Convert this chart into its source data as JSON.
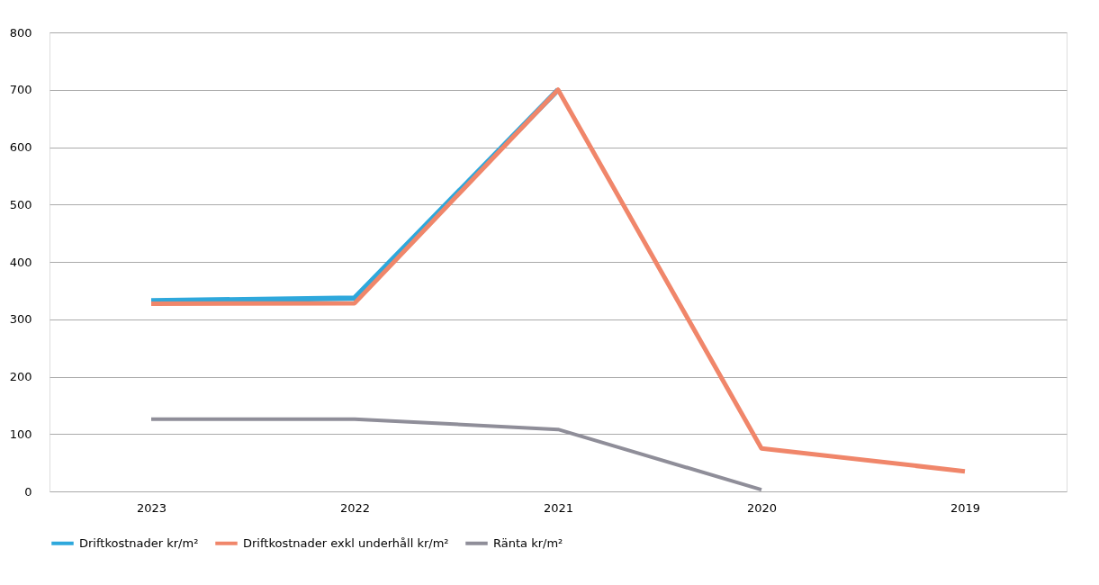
{
  "chart_data": {
    "type": "line",
    "categories": [
      "2023",
      "2022",
      "2021",
      "2020",
      "2019"
    ],
    "series": [
      {
        "name": "Driftkostnader kr/m²",
        "color": "#2ea8dc",
        "values": [
          332,
          337,
          700,
          null,
          null
        ]
      },
      {
        "name": "Driftkostnader exkl underhåll kr/m²",
        "color": "#f0866a",
        "values": [
          327,
          328,
          700,
          75,
          35
        ]
      },
      {
        "name": "Ränta kr/m²",
        "color": "#8f8e99",
        "values": [
          126,
          126,
          108,
          3,
          null
        ]
      }
    ],
    "ylim": [
      0,
      800
    ],
    "yticks": [
      0,
      100,
      200,
      300,
      400,
      500,
      600,
      700,
      800
    ],
    "grid": "y",
    "legend": "bottom",
    "marker": "none",
    "line_style": "solid"
  }
}
